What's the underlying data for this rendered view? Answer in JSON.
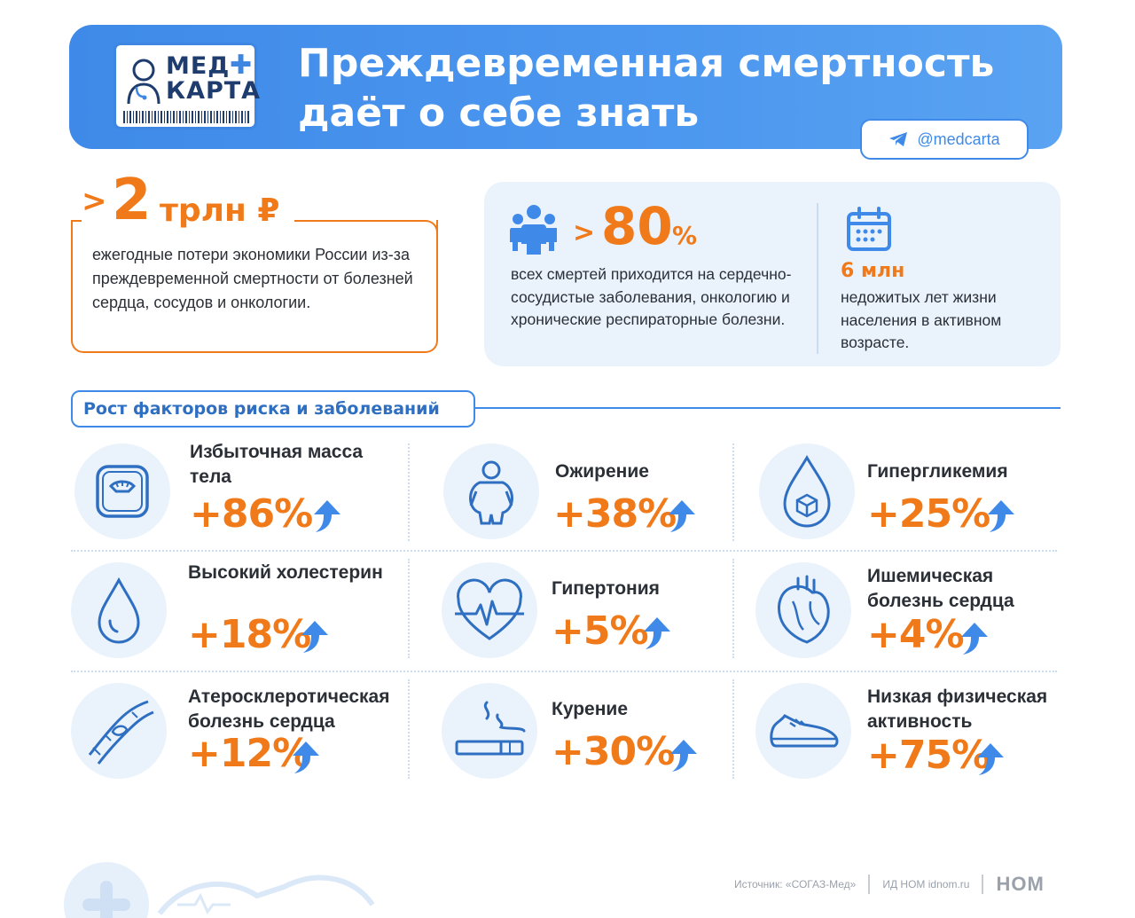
{
  "header": {
    "logo_line1": "МЕД",
    "logo_line2": "КАРТА",
    "title_line1": "Преждевременная смертность",
    "title_line2": "даёт о себе знать",
    "handle": "@medcarta",
    "accent_color": "#3f8ae8"
  },
  "economy": {
    "prefix": ">",
    "value": "2",
    "unit": "трлн ₽",
    "description": "ежегодные потери экономики России из-за преждевременной смертности от болезней сердца, сосудов и онкологии.",
    "color": "#f07a1a"
  },
  "stats": {
    "deaths_prefix": ">",
    "deaths_value": "80",
    "deaths_unit": "%",
    "deaths_text": "всех смертей приходится на сердечно-сосудистые заболевания, онкологию и хронические респираторные болезни.",
    "years_value": "6 млн",
    "years_text": "недожитых лет жизни населения в активном возрасте."
  },
  "section": {
    "title": "Рост факторов риска и заболеваний"
  },
  "factors": [
    {
      "name": "Избыточная масса тела",
      "value": "+86%",
      "icon": "scale-icon"
    },
    {
      "name": "Ожирение",
      "value": "+38%",
      "icon": "obese-person-icon"
    },
    {
      "name": "Гипергликемия",
      "value": "+25%",
      "icon": "sugar-drop-icon"
    },
    {
      "name": "Высокий холестерин",
      "value": "+18%",
      "icon": "drop-icon"
    },
    {
      "name": "Гипертония",
      "value": "+5%",
      "icon": "heart-pulse-icon"
    },
    {
      "name": "Ишемическая болезнь сердца",
      "value": "+4%",
      "icon": "anatomical-heart-icon"
    },
    {
      "name": "Атеросклеротическая болезнь сердца",
      "value": "+12%",
      "icon": "artery-icon"
    },
    {
      "name": "Курение",
      "value": "+30%",
      "icon": "cigarette-icon"
    },
    {
      "name": "Низкая физическая активность",
      "value": "+75%",
      "icon": "sneaker-icon"
    }
  ],
  "footer": {
    "source": "Источник: «СОГАЗ-Мед»",
    "publisher": "ИД НОМ idnom.ru",
    "brand": "НОМ"
  }
}
